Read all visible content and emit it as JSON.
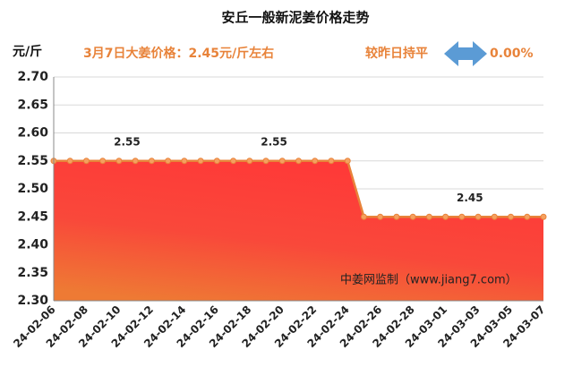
{
  "chart_data": {
    "type": "area",
    "title": "安丘一般新泥姜价格走势",
    "y_label": "元/斤",
    "price_note": "3月7日大姜价格：2.45元/斤左右",
    "change_label": "较昨日持平",
    "change_value": "0.00%",
    "watermark": "中姜网监制（www.jiang7.com）",
    "categories": [
      "24-02-06",
      null,
      "24-02-08",
      null,
      "24-02-10",
      null,
      "24-02-12",
      null,
      "24-02-14",
      null,
      "24-02-16",
      null,
      "24-02-18",
      null,
      "24-02-20",
      null,
      "24-02-22",
      null,
      "24-02-24",
      null,
      "24-02-26",
      null,
      "24-02-28",
      null,
      "24-03-01",
      null,
      "24-03-03",
      null,
      "24-03-05",
      null,
      "24-03-07"
    ],
    "values": [
      2.55,
      2.55,
      2.55,
      2.55,
      2.55,
      2.55,
      2.55,
      2.55,
      2.55,
      2.55,
      2.55,
      2.55,
      2.55,
      2.55,
      2.55,
      2.55,
      2.55,
      2.55,
      2.55,
      2.45,
      2.45,
      2.45,
      2.45,
      2.45,
      2.45,
      2.45,
      2.45,
      2.45,
      2.45,
      2.45,
      2.45
    ],
    "labeled_points": [
      4,
      13,
      25
    ],
    "color": "#e8833a",
    "ylim": [
      2.3,
      2.7
    ],
    "yticks": [
      {
        "value": 2.3,
        "label": "2.30"
      },
      {
        "value": 2.35,
        "label": "2.35"
      },
      {
        "value": 2.4,
        "label": "2.40"
      },
      {
        "value": 2.45,
        "label": "2.45"
      },
      {
        "value": 2.5,
        "label": "2.50"
      },
      {
        "value": 2.55,
        "label": "2.55"
      },
      {
        "value": 2.6,
        "label": "2.60"
      },
      {
        "value": 2.65,
        "label": "2.65"
      },
      {
        "value": 2.7,
        "label": "2.70"
      }
    ],
    "grid": true
  }
}
